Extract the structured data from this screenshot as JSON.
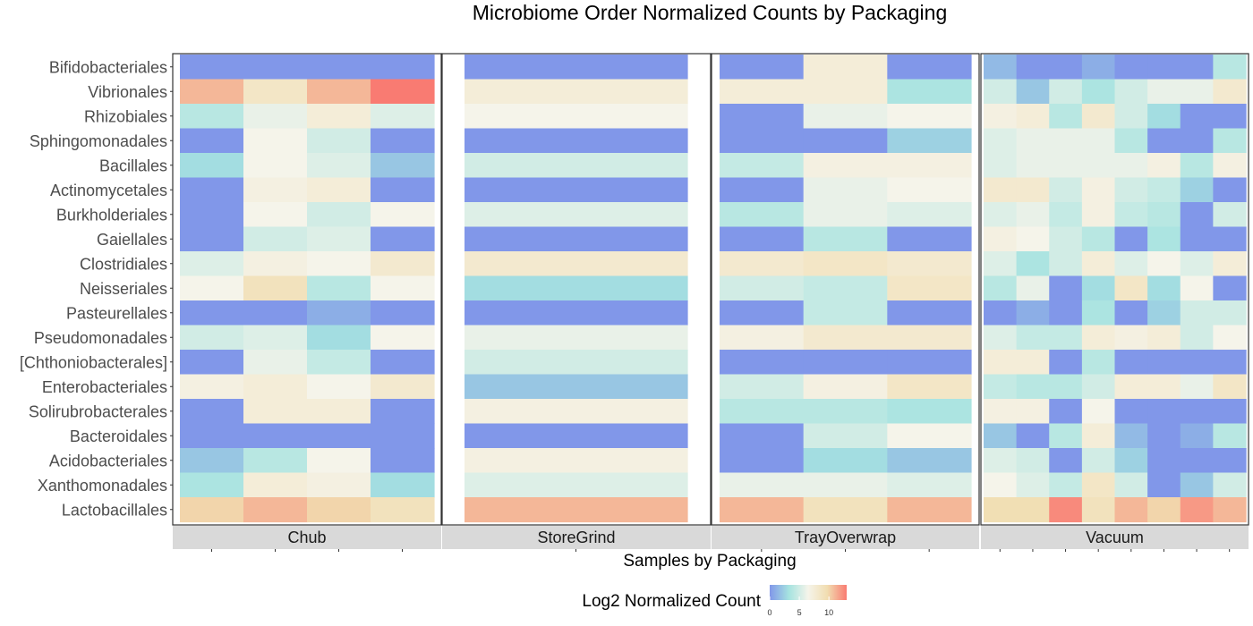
{
  "chart_data": {
    "type": "heatmap",
    "title": "Microbiome Order Normalized Counts by Packaging",
    "xlabel": "Samples by Packaging",
    "legend": {
      "title": "Log2 Normalized Count",
      "ticks": [
        "0",
        "5",
        "10"
      ],
      "range": [
        0,
        13
      ],
      "colors": [
        "#8197E9",
        "#A6E3E0",
        "#F5F4EA",
        "#F1DDB0",
        "#F97B72"
      ],
      "placement": "bottom"
    },
    "rows": [
      "Bifidobacteriales",
      "Vibrionales",
      "Rhizobiales",
      "Sphingomonadales",
      "Bacillales",
      "Actinomycetales",
      "Burkholderiales",
      "Gaiellales",
      "Clostridiales",
      "Neisseriales",
      "Pasteurellales",
      "Pseudomonadales",
      "[Chthoniobacterales]",
      "Enterobacteriales",
      "Solirubrobacterales",
      "Bacteroidales",
      "Acidobacteriales",
      "Xanthomonadales",
      "Lactobacillales"
    ],
    "facets": [
      {
        "name": "Chub",
        "samples": 4,
        "values": [
          [
            0,
            0,
            0,
            0
          ],
          [
            11,
            8.5,
            11,
            13
          ],
          [
            4,
            6,
            7.5,
            5.5
          ],
          [
            0,
            6.5,
            5,
            0
          ],
          [
            3,
            6.5,
            5.5,
            2
          ],
          [
            0,
            7,
            7.5,
            0
          ],
          [
            0,
            6.5,
            5,
            6.5
          ],
          [
            0,
            5,
            5.5,
            0
          ],
          [
            5.5,
            7,
            6.5,
            8
          ],
          [
            6.5,
            9,
            4,
            6.5
          ],
          [
            0,
            0,
            1,
            0
          ],
          [
            5,
            5.5,
            3,
            6.5
          ],
          [
            0,
            6,
            4.5,
            0
          ],
          [
            7,
            7.5,
            6.5,
            8
          ],
          [
            0,
            7.5,
            7.5,
            0
          ],
          [
            0,
            0,
            0,
            0
          ],
          [
            2,
            4,
            6.5,
            0
          ],
          [
            3.5,
            7.5,
            7,
            3
          ],
          [
            10,
            11,
            10,
            9
          ]
        ]
      },
      {
        "name": "StoreGrind",
        "samples": 1,
        "values": [
          [
            0
          ],
          [
            7.5
          ],
          [
            6.5
          ],
          [
            0
          ],
          [
            5
          ],
          [
            0
          ],
          [
            5.5
          ],
          [
            0
          ],
          [
            8
          ],
          [
            3
          ],
          [
            0
          ],
          [
            6
          ],
          [
            5
          ],
          [
            2
          ],
          [
            7
          ],
          [
            0
          ],
          [
            7
          ],
          [
            5.5
          ],
          [
            11
          ]
        ]
      },
      {
        "name": "TrayOverwrap",
        "samples": 3,
        "values": [
          [
            0,
            7.5,
            0
          ],
          [
            7.5,
            7.5,
            3.5
          ],
          [
            0,
            6,
            6.5
          ],
          [
            0,
            0,
            2.5
          ],
          [
            4.5,
            7,
            7
          ],
          [
            0,
            6,
            6.5
          ],
          [
            4,
            6,
            5.5
          ],
          [
            0,
            4,
            0
          ],
          [
            8,
            8.5,
            8
          ],
          [
            5,
            4.5,
            8.5
          ],
          [
            0,
            4.5,
            0
          ],
          [
            7,
            8,
            8
          ],
          [
            0,
            0,
            0
          ],
          [
            5,
            7,
            8.5
          ],
          [
            4,
            4,
            3.5
          ],
          [
            0,
            5,
            6.5
          ],
          [
            0,
            3,
            2
          ],
          [
            6,
            6,
            5.5
          ],
          [
            11,
            9,
            11
          ]
        ]
      },
      {
        "name": "Vacuum",
        "samples": 8,
        "values": [
          [
            1.5,
            0,
            0,
            1,
            0,
            0,
            0,
            4
          ],
          [
            5,
            2,
            5,
            3.5,
            5,
            6,
            6,
            8
          ],
          [
            7,
            7.5,
            4,
            8,
            5,
            3,
            0,
            0
          ],
          [
            5.5,
            6,
            6,
            6,
            4,
            0,
            0,
            4
          ],
          [
            5.5,
            6,
            6,
            6,
            6,
            7,
            4,
            7
          ],
          [
            8,
            8,
            5,
            7,
            5,
            4.5,
            2.5,
            0
          ],
          [
            5.5,
            6,
            4.5,
            7,
            4.5,
            4,
            0,
            5
          ],
          [
            7,
            6.5,
            5,
            4,
            0,
            3.5,
            0,
            0
          ],
          [
            5.5,
            3.5,
            5,
            7.5,
            5.5,
            6.5,
            5.5,
            7.5
          ],
          [
            4,
            6,
            0,
            3,
            8.5,
            3,
            6.5,
            0
          ],
          [
            0,
            1,
            0,
            3.5,
            0,
            2.5,
            5,
            5
          ],
          [
            5.5,
            4.5,
            4.5,
            7.5,
            7,
            7.5,
            5,
            6.5
          ],
          [
            7.5,
            7.5,
            0,
            4,
            0,
            0,
            0,
            0
          ],
          [
            4.5,
            4,
            4,
            5,
            7.5,
            7.5,
            6,
            8.5
          ],
          [
            7,
            7,
            0,
            6.5,
            0,
            0,
            0,
            0
          ],
          [
            2,
            0,
            4,
            7.5,
            1.5,
            0,
            1,
            4
          ],
          [
            5.5,
            5,
            0,
            5,
            2.5,
            0,
            0,
            0
          ],
          [
            6.5,
            5.5,
            4.5,
            8.5,
            5,
            0,
            2,
            5
          ],
          [
            9.5,
            9.5,
            12.5,
            9,
            11,
            10,
            12,
            11
          ]
        ]
      }
    ]
  }
}
